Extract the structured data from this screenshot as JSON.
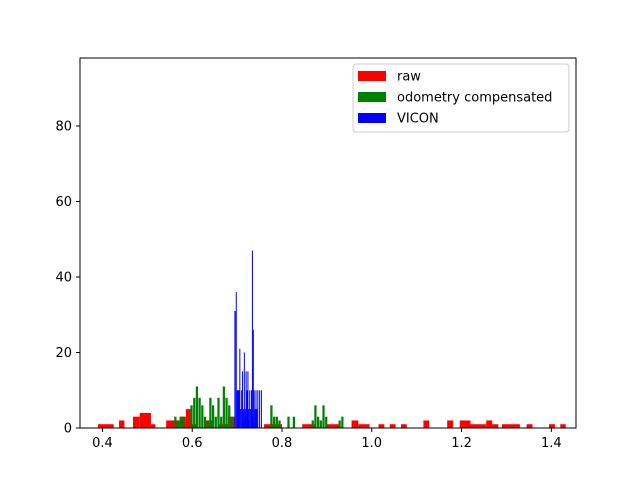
{
  "chart_data": {
    "type": "histogram",
    "title": "",
    "xlabel": "",
    "ylabel": "",
    "xlim": [
      0.35,
      1.455
    ],
    "ylim": [
      0,
      98
    ],
    "x_ticks": [
      0.4,
      0.6,
      0.8,
      1.0,
      1.2,
      1.4
    ],
    "x_tick_labels": [
      "0.4",
      "0.6",
      "0.8",
      "1.0",
      "1.2",
      "1.4"
    ],
    "y_ticks": [
      0,
      20,
      40,
      60,
      80
    ],
    "y_tick_labels": [
      "0",
      "20",
      "40",
      "60",
      "80"
    ],
    "grid": false,
    "legend_position": "top-right",
    "series": [
      {
        "name": "raw",
        "color": "#ff0000",
        "bins": [
          {
            "x0": 0.39,
            "x1": 0.425,
            "count": 1
          },
          {
            "x0": 0.437,
            "x1": 0.449,
            "count": 2
          },
          {
            "x0": 0.468,
            "x1": 0.483,
            "count": 3
          },
          {
            "x0": 0.483,
            "x1": 0.508,
            "count": 4
          },
          {
            "x0": 0.508,
            "x1": 0.518,
            "count": 1
          },
          {
            "x0": 0.542,
            "x1": 0.572,
            "count": 2
          },
          {
            "x0": 0.572,
            "x1": 0.586,
            "count": 3
          },
          {
            "x0": 0.586,
            "x1": 0.598,
            "count": 5
          },
          {
            "x0": 0.598,
            "x1": 0.612,
            "count": 1
          },
          {
            "x0": 0.63,
            "x1": 0.645,
            "count": 2
          },
          {
            "x0": 0.66,
            "x1": 0.68,
            "count": 1
          },
          {
            "x0": 0.68,
            "x1": 0.695,
            "count": 3
          },
          {
            "x0": 0.76,
            "x1": 0.8,
            "count": 1
          },
          {
            "x0": 0.845,
            "x1": 0.875,
            "count": 1
          },
          {
            "x0": 0.9,
            "x1": 0.93,
            "count": 1
          },
          {
            "x0": 0.955,
            "x1": 0.97,
            "count": 2
          },
          {
            "x0": 0.97,
            "x1": 0.995,
            "count": 1
          },
          {
            "x0": 1.015,
            "x1": 1.028,
            "count": 1
          },
          {
            "x0": 1.04,
            "x1": 1.053,
            "count": 1
          },
          {
            "x0": 1.065,
            "x1": 1.078,
            "count": 1
          },
          {
            "x0": 1.115,
            "x1": 1.128,
            "count": 2
          },
          {
            "x0": 1.168,
            "x1": 1.181,
            "count": 2
          },
          {
            "x0": 1.196,
            "x1": 1.22,
            "count": 2
          },
          {
            "x0": 1.22,
            "x1": 1.255,
            "count": 1
          },
          {
            "x0": 1.255,
            "x1": 1.268,
            "count": 2
          },
          {
            "x0": 1.268,
            "x1": 1.282,
            "count": 1
          },
          {
            "x0": 1.29,
            "x1": 1.33,
            "count": 1
          },
          {
            "x0": 1.345,
            "x1": 1.358,
            "count": 1
          },
          {
            "x0": 1.395,
            "x1": 1.408,
            "count": 1
          },
          {
            "x0": 1.42,
            "x1": 1.432,
            "count": 1
          }
        ]
      },
      {
        "name": "odometry compensated",
        "color": "#008000",
        "bins": [
          {
            "x0": 0.56,
            "x1": 0.565,
            "count": 3
          },
          {
            "x0": 0.566,
            "x1": 0.571,
            "count": 2
          },
          {
            "x0": 0.572,
            "x1": 0.577,
            "count": 3
          },
          {
            "x0": 0.578,
            "x1": 0.583,
            "count": 3
          },
          {
            "x0": 0.596,
            "x1": 0.601,
            "count": 6
          },
          {
            "x0": 0.602,
            "x1": 0.607,
            "count": 8
          },
          {
            "x0": 0.608,
            "x1": 0.613,
            "count": 11
          },
          {
            "x0": 0.614,
            "x1": 0.619,
            "count": 8
          },
          {
            "x0": 0.62,
            "x1": 0.625,
            "count": 6
          },
          {
            "x0": 0.626,
            "x1": 0.631,
            "count": 3
          },
          {
            "x0": 0.632,
            "x1": 0.637,
            "count": 2
          },
          {
            "x0": 0.638,
            "x1": 0.643,
            "count": 8
          },
          {
            "x0": 0.644,
            "x1": 0.649,
            "count": 6
          },
          {
            "x0": 0.65,
            "x1": 0.655,
            "count": 3
          },
          {
            "x0": 0.656,
            "x1": 0.661,
            "count": 8
          },
          {
            "x0": 0.662,
            "x1": 0.667,
            "count": 3
          },
          {
            "x0": 0.668,
            "x1": 0.673,
            "count": 11
          },
          {
            "x0": 0.674,
            "x1": 0.679,
            "count": 8
          },
          {
            "x0": 0.68,
            "x1": 0.685,
            "count": 6
          },
          {
            "x0": 0.686,
            "x1": 0.691,
            "count": 3
          },
          {
            "x0": 0.71,
            "x1": 0.715,
            "count": 2
          },
          {
            "x0": 0.716,
            "x1": 0.721,
            "count": 3
          },
          {
            "x0": 0.722,
            "x1": 0.727,
            "count": 2
          },
          {
            "x0": 0.734,
            "x1": 0.739,
            "count": 3
          },
          {
            "x0": 0.774,
            "x1": 0.779,
            "count": 6
          },
          {
            "x0": 0.78,
            "x1": 0.785,
            "count": 3
          },
          {
            "x0": 0.786,
            "x1": 0.791,
            "count": 3
          },
          {
            "x0": 0.792,
            "x1": 0.797,
            "count": 2
          },
          {
            "x0": 0.812,
            "x1": 0.817,
            "count": 3
          },
          {
            "x0": 0.824,
            "x1": 0.829,
            "count": 3
          },
          {
            "x0": 0.866,
            "x1": 0.871,
            "count": 2
          },
          {
            "x0": 0.872,
            "x1": 0.877,
            "count": 6
          },
          {
            "x0": 0.878,
            "x1": 0.883,
            "count": 3
          },
          {
            "x0": 0.884,
            "x1": 0.889,
            "count": 2
          },
          {
            "x0": 0.89,
            "x1": 0.895,
            "count": 6
          },
          {
            "x0": 0.896,
            "x1": 0.901,
            "count": 3
          },
          {
            "x0": 0.926,
            "x1": 0.931,
            "count": 2
          },
          {
            "x0": 0.932,
            "x1": 0.937,
            "count": 3
          }
        ]
      },
      {
        "name": "VICON",
        "color": "#0000ff",
        "bins": [
          {
            "x0": 0.694,
            "x1": 0.697,
            "count": 31
          },
          {
            "x0": 0.697,
            "x1": 0.699,
            "count": 36
          },
          {
            "x0": 0.699,
            "x1": 0.701,
            "count": 10
          },
          {
            "x0": 0.701,
            "x1": 0.703,
            "count": 10
          },
          {
            "x0": 0.703,
            "x1": 0.705,
            "count": 10
          },
          {
            "x0": 0.705,
            "x1": 0.707,
            "count": 21
          },
          {
            "x0": 0.707,
            "x1": 0.709,
            "count": 5
          },
          {
            "x0": 0.709,
            "x1": 0.711,
            "count": 10
          },
          {
            "x0": 0.711,
            "x1": 0.713,
            "count": 15
          },
          {
            "x0": 0.713,
            "x1": 0.715,
            "count": 5
          },
          {
            "x0": 0.715,
            "x1": 0.717,
            "count": 20
          },
          {
            "x0": 0.717,
            "x1": 0.719,
            "count": 5
          },
          {
            "x0": 0.719,
            "x1": 0.721,
            "count": 15
          },
          {
            "x0": 0.721,
            "x1": 0.723,
            "count": 10
          },
          {
            "x0": 0.723,
            "x1": 0.725,
            "count": 15
          },
          {
            "x0": 0.725,
            "x1": 0.727,
            "count": 5
          },
          {
            "x0": 0.727,
            "x1": 0.729,
            "count": 10
          },
          {
            "x0": 0.729,
            "x1": 0.731,
            "count": 5
          },
          {
            "x0": 0.731,
            "x1": 0.733,
            "count": 10
          },
          {
            "x0": 0.733,
            "x1": 0.735,
            "count": 47
          },
          {
            "x0": 0.735,
            "x1": 0.737,
            "count": 26
          },
          {
            "x0": 0.737,
            "x1": 0.739,
            "count": 10
          },
          {
            "x0": 0.739,
            "x1": 0.741,
            "count": 5
          },
          {
            "x0": 0.741,
            "x1": 0.743,
            "count": 10
          },
          {
            "x0": 0.743,
            "x1": 0.745,
            "count": 5
          },
          {
            "x0": 0.745,
            "x1": 0.747,
            "count": 10
          },
          {
            "x0": 0.749,
            "x1": 0.751,
            "count": 10
          },
          {
            "x0": 0.753,
            "x1": 0.755,
            "count": 10
          }
        ]
      }
    ]
  }
}
